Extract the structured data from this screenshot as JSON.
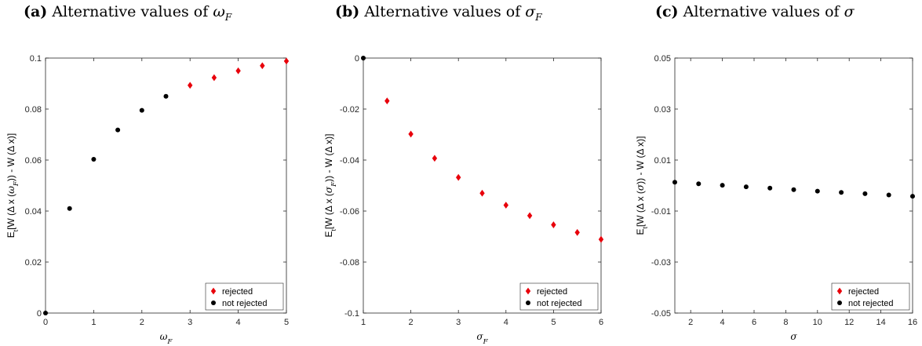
{
  "panels": [
    {
      "tag": "(a)",
      "text": "Alternative values of ",
      "math": "ω",
      "math_sub": "F"
    },
    {
      "tag": "(b)",
      "text": "Alternative values of ",
      "math": "σ",
      "math_sub": "F"
    },
    {
      "tag": "(c)",
      "text": "Alternative values of ",
      "math": "σ",
      "math_sub": ""
    }
  ],
  "legend_labels": {
    "rejected": "rejected",
    "not_rejected": "not rejected"
  },
  "colors": {
    "rejected": "#e8000b",
    "not_rejected": "#000000"
  },
  "chart_data": [
    {
      "type": "scatter",
      "title": "(a) Alternative values of ωF",
      "xlabel": "ωF",
      "ylabel": "Et[W (Δ x (ωF)) - W (Δ x)]",
      "xlim": [
        0,
        5
      ],
      "ylim": [
        0,
        0.1
      ],
      "xticks": [
        "0",
        "1",
        "2",
        "3",
        "4",
        "5"
      ],
      "yticks": [
        "0",
        "0.02",
        "0.04",
        "0.06",
        "0.08",
        "0.1"
      ],
      "xtick_values": [
        0,
        1,
        2,
        3,
        4,
        5
      ],
      "ytick_values": [
        0,
        0.02,
        0.04,
        0.06,
        0.08,
        0.1
      ],
      "legend_position": "bottom-right",
      "grid": false,
      "series": [
        {
          "name": "rejected",
          "marker": "diamond",
          "x": [
            3,
            3.5,
            4,
            4.5,
            5
          ],
          "y": [
            0.0893,
            0.0923,
            0.095,
            0.097,
            0.0988
          ]
        },
        {
          "name": "not rejected",
          "marker": "dot",
          "x": [
            0,
            0.5,
            1,
            1.5,
            2,
            2.5
          ],
          "y": [
            0,
            0.041,
            0.0603,
            0.0718,
            0.0795,
            0.085
          ]
        }
      ]
    },
    {
      "type": "scatter",
      "title": "(b) Alternative values of σF",
      "xlabel": "σF",
      "ylabel": "Et[W (Δ x (σF)) - W (Δ x)]",
      "xlim": [
        1,
        6
      ],
      "ylim": [
        -0.1,
        0
      ],
      "xticks": [
        "1",
        "2",
        "3",
        "4",
        "5",
        "6"
      ],
      "yticks": [
        "-0.1",
        "-0.08",
        "-0.06",
        "-0.04",
        "-0.02",
        "0"
      ],
      "xtick_values": [
        1,
        2,
        3,
        4,
        5,
        6
      ],
      "ytick_values": [
        -0.1,
        -0.08,
        -0.06,
        -0.04,
        -0.02,
        0
      ],
      "legend_position": "bottom-right",
      "grid": false,
      "series": [
        {
          "name": "rejected",
          "marker": "diamond",
          "x": [
            1.5,
            2,
            2.5,
            3,
            3.5,
            4,
            4.5,
            5,
            5.5,
            6
          ],
          "y": [
            -0.0168,
            -0.0298,
            -0.0393,
            -0.0468,
            -0.053,
            -0.0577,
            -0.0618,
            -0.0654,
            -0.0684,
            -0.0711
          ]
        },
        {
          "name": "not rejected",
          "marker": "dot",
          "x": [
            1
          ],
          "y": [
            0
          ]
        }
      ]
    },
    {
      "type": "scatter",
      "title": "(c) Alternative values of σ",
      "xlabel": "σ",
      "ylabel": "Et[W (Δ x (σ)) - W (Δ x)]",
      "xlim": [
        1,
        16
      ],
      "ylim": [
        -0.05,
        0.05
      ],
      "xticks": [
        "2",
        "4",
        "6",
        "8",
        "10",
        "12",
        "14",
        "16"
      ],
      "yticks": [
        "-0.05",
        "-0.03",
        "-0.01",
        "0.01",
        "0.03",
        "0.05"
      ],
      "xtick_values": [
        2,
        4,
        6,
        8,
        10,
        12,
        14,
        16
      ],
      "ytick_values": [
        -0.05,
        -0.03,
        -0.01,
        0.01,
        0.03,
        0.05
      ],
      "legend_position": "bottom-right",
      "grid": false,
      "series": [
        {
          "name": "rejected",
          "marker": "diamond",
          "x": [],
          "y": []
        },
        {
          "name": "not rejected",
          "marker": "dot",
          "x": [
            1,
            2.5,
            4,
            5.5,
            7,
            8.5,
            10,
            11.5,
            13,
            14.5,
            16
          ],
          "y": [
            0.0013,
            0.0007,
            0.0001,
            -0.0005,
            -0.001,
            -0.0016,
            -0.0022,
            -0.0027,
            -0.0032,
            -0.0037,
            -0.0042
          ]
        }
      ]
    }
  ]
}
